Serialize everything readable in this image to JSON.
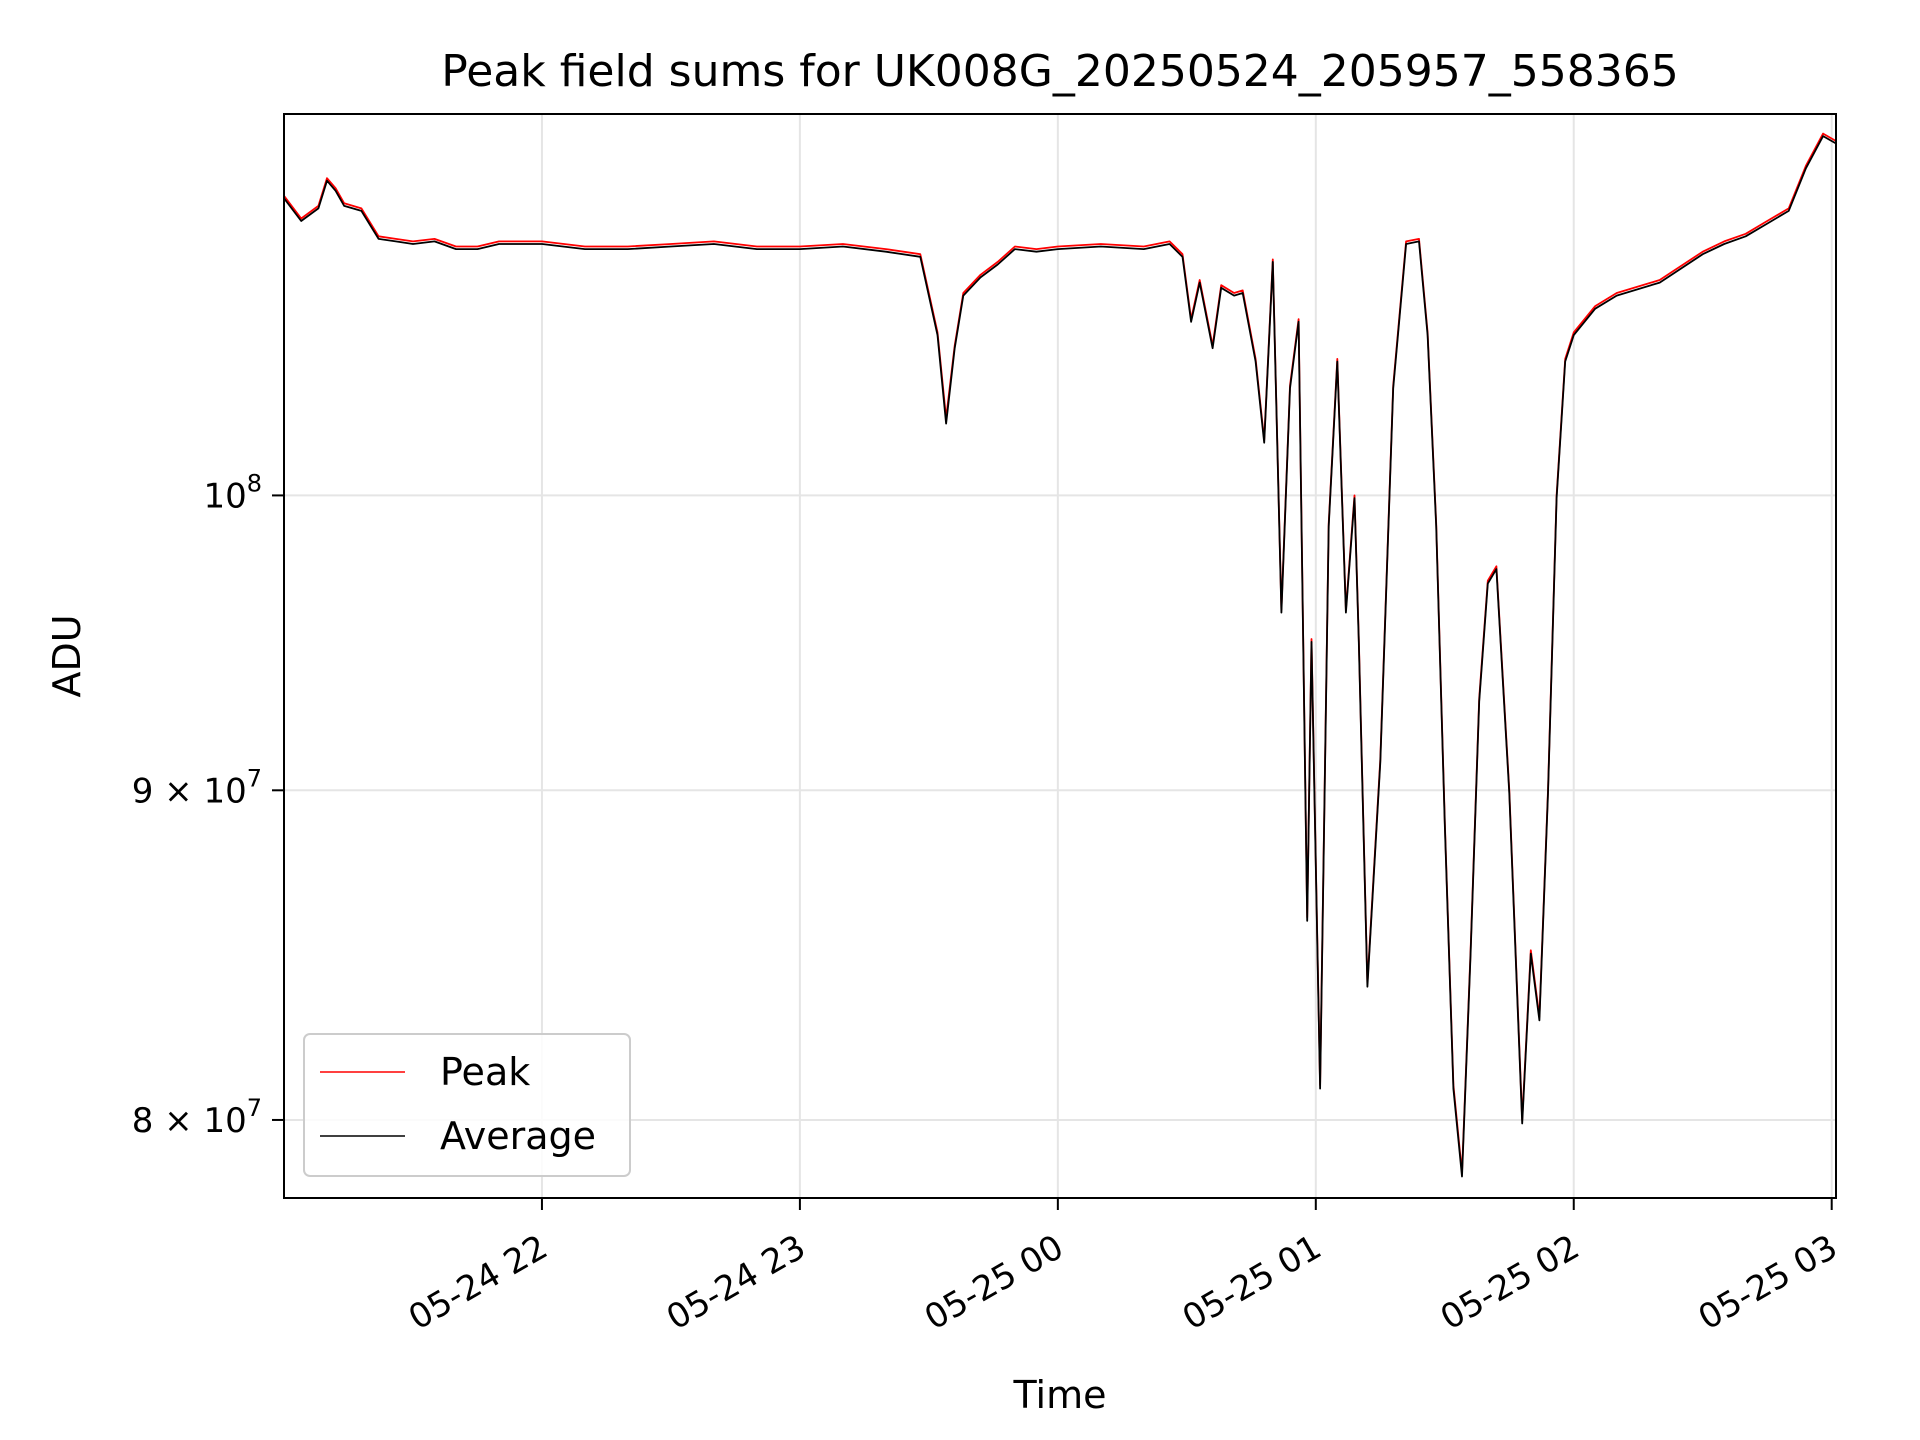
{
  "chart_data": {
    "type": "line",
    "title": "Peak field sums for UK008G_20250524_205957_558365",
    "xlabel": "Time",
    "ylabel": "ADU",
    "xaxis_type": "datetime",
    "xlim": [
      "2025-05-24T21:00:00",
      "2025-05-25T03:01:00"
    ],
    "ylim": [
      77800000,
      114600000
    ],
    "yscale": "log",
    "grid": true,
    "legend_location": "lower-left",
    "x_ticks": [
      {
        "value": "2025-05-24T22:00:00",
        "label": "05-24 22"
      },
      {
        "value": "2025-05-24T23:00:00",
        "label": "05-24 23"
      },
      {
        "value": "2025-05-25T00:00:00",
        "label": "05-25 00"
      },
      {
        "value": "2025-05-25T01:00:00",
        "label": "05-25 01"
      },
      {
        "value": "2025-05-25T02:00:00",
        "label": "05-25 02"
      },
      {
        "value": "2025-05-25T03:00:00",
        "label": "05-25 03"
      }
    ],
    "y_ticks": [
      {
        "value": 100000000,
        "mantissa": "",
        "base": "10",
        "exponent": "8"
      },
      {
        "value": 90000000,
        "mantissa": "9 × ",
        "base": "10",
        "exponent": "7"
      },
      {
        "value": 80000000,
        "mantissa": "8 × ",
        "base": "10",
        "exponent": "7"
      }
    ],
    "series": [
      {
        "name": "Peak",
        "color": "#ff0000",
        "x": [
          "2025-05-24T21:00:00",
          "2025-05-24T21:04:00",
          "2025-05-24T21:08:00",
          "2025-05-24T21:10:00",
          "2025-05-24T21:12:00",
          "2025-05-24T21:14:00",
          "2025-05-24T21:18:00",
          "2025-05-24T21:22:00",
          "2025-05-24T21:26:00",
          "2025-05-24T21:30:00",
          "2025-05-24T21:35:00",
          "2025-05-24T21:40:00",
          "2025-05-24T21:45:00",
          "2025-05-24T21:50:00",
          "2025-05-24T22:00:00",
          "2025-05-24T22:10:00",
          "2025-05-24T22:20:00",
          "2025-05-24T22:30:00",
          "2025-05-24T22:40:00",
          "2025-05-24T22:50:00",
          "2025-05-24T23:00:00",
          "2025-05-24T23:10:00",
          "2025-05-24T23:20:00",
          "2025-05-24T23:28:00",
          "2025-05-24T23:32:00",
          "2025-05-24T23:34:00",
          "2025-05-24T23:36:00",
          "2025-05-24T23:38:00",
          "2025-05-24T23:42:00",
          "2025-05-24T23:46:00",
          "2025-05-24T23:50:00",
          "2025-05-24T23:55:00",
          "2025-05-25T00:00:00",
          "2025-05-25T00:10:00",
          "2025-05-25T00:20:00",
          "2025-05-25T00:26:00",
          "2025-05-25T00:29:00",
          "2025-05-25T00:31:00",
          "2025-05-25T00:33:00",
          "2025-05-25T00:36:00",
          "2025-05-25T00:38:00",
          "2025-05-25T00:41:00",
          "2025-05-25T00:43:00",
          "2025-05-25T00:46:00",
          "2025-05-25T00:48:00",
          "2025-05-25T00:50:00",
          "2025-05-25T00:52:00",
          "2025-05-25T00:54:00",
          "2025-05-25T00:56:00",
          "2025-05-25T00:58:00",
          "2025-05-25T00:59:00",
          "2025-05-25T01:01:00",
          "2025-05-25T01:03:00",
          "2025-05-25T01:05:00",
          "2025-05-25T01:07:00",
          "2025-05-25T01:09:00",
          "2025-05-25T01:10:00",
          "2025-05-25T01:12:00",
          "2025-05-25T01:15:00",
          "2025-05-25T01:18:00",
          "2025-05-25T01:21:00",
          "2025-05-25T01:24:00",
          "2025-05-25T01:26:00",
          "2025-05-25T01:28:00",
          "2025-05-25T01:30:00",
          "2025-05-25T01:32:00",
          "2025-05-25T01:34:00",
          "2025-05-25T01:36:00",
          "2025-05-25T01:38:00",
          "2025-05-25T01:40:00",
          "2025-05-25T01:42:00",
          "2025-05-25T01:45:00",
          "2025-05-25T01:48:00",
          "2025-05-25T01:50:00",
          "2025-05-25T01:52:00",
          "2025-05-25T01:54:00",
          "2025-05-25T01:56:00",
          "2025-05-25T01:58:00",
          "2025-05-25T02:00:00",
          "2025-05-25T02:05:00",
          "2025-05-25T02:10:00",
          "2025-05-25T02:20:00",
          "2025-05-25T02:30:00",
          "2025-05-25T02:35:00",
          "2025-05-25T02:40:00",
          "2025-05-25T02:45:00",
          "2025-05-25T02:50:00",
          "2025-05-25T02:54:00",
          "2025-05-25T02:58:00",
          "2025-05-25T03:01:00"
        ],
        "values": [
          111300000,
          110400000,
          110900000,
          112000000,
          111600000,
          111000000,
          110800000,
          109700000,
          109600000,
          109500000,
          109600000,
          109300000,
          109300000,
          109500000,
          109500000,
          109300000,
          109300000,
          109400000,
          109500000,
          109300000,
          109300000,
          109400000,
          109200000,
          109000000,
          106000000,
          102800000,
          105500000,
          107500000,
          108200000,
          108700000,
          109300000,
          109200000,
          109300000,
          109400000,
          109300000,
          109500000,
          109000000,
          106500000,
          108000000,
          105500000,
          107800000,
          107500000,
          107600000,
          105000000,
          102000000,
          108800000,
          96000000,
          104000000,
          106500000,
          86000000,
          95000000,
          81000000,
          99000000,
          105000000,
          96000000,
          100000000,
          95000000,
          84000000,
          91000000,
          104000000,
          109500000,
          109600000,
          106000000,
          99000000,
          89000000,
          81000000,
          78500000,
          85000000,
          93000000,
          97000000,
          97500000,
          90000000,
          80000000,
          85000000,
          83000000,
          90000000,
          100000000,
          105000000,
          106000000,
          107000000,
          107500000,
          108000000,
          109100000,
          109500000,
          109800000,
          110300000,
          110800000,
          112500000,
          113800000,
          113500000
        ]
      },
      {
        "name": "Average",
        "color": "#000000",
        "x": [
          "2025-05-24T21:00:00",
          "2025-05-24T21:04:00",
          "2025-05-24T21:08:00",
          "2025-05-24T21:10:00",
          "2025-05-24T21:12:00",
          "2025-05-24T21:14:00",
          "2025-05-24T21:18:00",
          "2025-05-24T21:22:00",
          "2025-05-24T21:26:00",
          "2025-05-24T21:30:00",
          "2025-05-24T21:35:00",
          "2025-05-24T21:40:00",
          "2025-05-24T21:45:00",
          "2025-05-24T21:50:00",
          "2025-05-24T22:00:00",
          "2025-05-24T22:10:00",
          "2025-05-24T22:20:00",
          "2025-05-24T22:30:00",
          "2025-05-24T22:40:00",
          "2025-05-24T22:50:00",
          "2025-05-24T23:00:00",
          "2025-05-24T23:10:00",
          "2025-05-24T23:20:00",
          "2025-05-24T23:28:00",
          "2025-05-24T23:32:00",
          "2025-05-24T23:34:00",
          "2025-05-24T23:36:00",
          "2025-05-24T23:38:00",
          "2025-05-24T23:42:00",
          "2025-05-24T23:46:00",
          "2025-05-24T23:50:00",
          "2025-05-24T23:55:00",
          "2025-05-25T00:00:00",
          "2025-05-25T00:10:00",
          "2025-05-25T00:20:00",
          "2025-05-25T00:26:00",
          "2025-05-25T00:29:00",
          "2025-05-25T00:31:00",
          "2025-05-25T00:33:00",
          "2025-05-25T00:36:00",
          "2025-05-25T00:38:00",
          "2025-05-25T00:41:00",
          "2025-05-25T00:43:00",
          "2025-05-25T00:46:00",
          "2025-05-25T00:48:00",
          "2025-05-25T00:50:00",
          "2025-05-25T00:52:00",
          "2025-05-25T00:54:00",
          "2025-05-25T00:56:00",
          "2025-05-25T00:58:00",
          "2025-05-25T00:59:00",
          "2025-05-25T01:01:00",
          "2025-05-25T01:03:00",
          "2025-05-25T01:05:00",
          "2025-05-25T01:07:00",
          "2025-05-25T01:09:00",
          "2025-05-25T01:10:00",
          "2025-05-25T01:12:00",
          "2025-05-25T01:15:00",
          "2025-05-25T01:18:00",
          "2025-05-25T01:21:00",
          "2025-05-25T01:24:00",
          "2025-05-25T01:26:00",
          "2025-05-25T01:28:00",
          "2025-05-25T01:30:00",
          "2025-05-25T01:32:00",
          "2025-05-25T01:34:00",
          "2025-05-25T01:36:00",
          "2025-05-25T01:38:00",
          "2025-05-25T01:40:00",
          "2025-05-25T01:42:00",
          "2025-05-25T01:45:00",
          "2025-05-25T01:48:00",
          "2025-05-25T01:50:00",
          "2025-05-25T01:52:00",
          "2025-05-25T01:54:00",
          "2025-05-25T01:56:00",
          "2025-05-25T01:58:00",
          "2025-05-25T02:00:00",
          "2025-05-25T02:05:00",
          "2025-05-25T02:10:00",
          "2025-05-25T02:20:00",
          "2025-05-25T02:30:00",
          "2025-05-25T02:35:00",
          "2025-05-25T02:40:00",
          "2025-05-25T02:45:00",
          "2025-05-25T02:50:00",
          "2025-05-25T02:54:00",
          "2025-05-25T02:58:00",
          "2025-05-25T03:01:00"
        ],
        "values": [
          111200000,
          110300000,
          110800000,
          111900000,
          111500000,
          110900000,
          110700000,
          109600000,
          109500000,
          109400000,
          109500000,
          109200000,
          109200000,
          109400000,
          109400000,
          109200000,
          109200000,
          109300000,
          109400000,
          109200000,
          109200000,
          109300000,
          109100000,
          108900000,
          105900000,
          102600000,
          105400000,
          107400000,
          108100000,
          108600000,
          109200000,
          109100000,
          109200000,
          109300000,
          109200000,
          109400000,
          108900000,
          106400000,
          107900000,
          105400000,
          107700000,
          107400000,
          107500000,
          104900000,
          101900000,
          108700000,
          95900000,
          103900000,
          106400000,
          85900000,
          94900000,
          80900000,
          98900000,
          104900000,
          95900000,
          99900000,
          94900000,
          83900000,
          90900000,
          103900000,
          109400000,
          109500000,
          105900000,
          98900000,
          88900000,
          80900000,
          78400000,
          84900000,
          92900000,
          96900000,
          97400000,
          89900000,
          79900000,
          84900000,
          82900000,
          89900000,
          99900000,
          104900000,
          105900000,
          106900000,
          107400000,
          107900000,
          109000000,
          109400000,
          109700000,
          110200000,
          110700000,
          112400000,
          113700000,
          113400000
        ]
      }
    ]
  }
}
